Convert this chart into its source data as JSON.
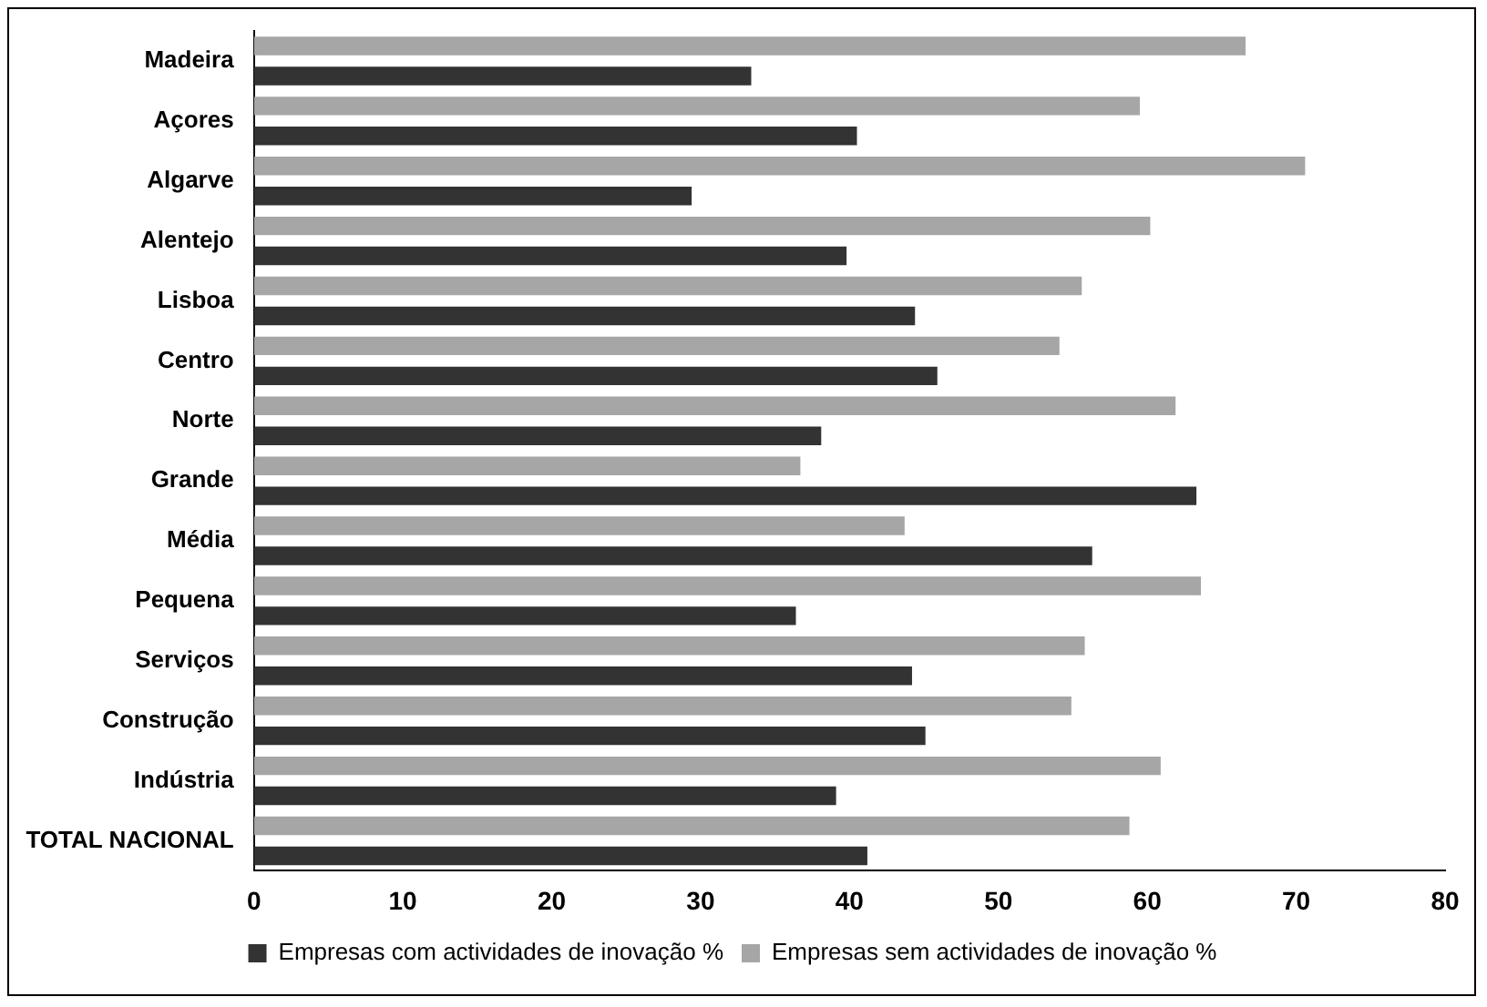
{
  "chart_data": {
    "type": "bar",
    "orientation": "horizontal",
    "categories": [
      "Madeira",
      "Açores",
      "Algarve",
      "Alentejo",
      "Lisboa",
      "Centro",
      "Norte",
      "Grande",
      "Média",
      "Pequena",
      "Serviços",
      "Construção",
      "Indústria",
      "TOTAL NACIONAL"
    ],
    "series": [
      {
        "name": "Empresas com actividades de inovação %",
        "color": "#333333",
        "values": [
          33.4,
          40.5,
          29.4,
          39.8,
          44.4,
          45.9,
          38.1,
          63.3,
          56.3,
          36.4,
          44.2,
          45.1,
          39.1,
          41.2
        ]
      },
      {
        "name": "Empresas sem actividades de inovação %",
        "color": "#a6a6a6",
        "values": [
          66.6,
          59.5,
          70.6,
          60.2,
          55.6,
          54.1,
          61.9,
          36.7,
          43.7,
          63.6,
          55.8,
          54.9,
          60.9,
          58.8
        ]
      }
    ],
    "xlim": [
      0,
      80
    ],
    "xticks": [
      0,
      10,
      20,
      30,
      40,
      50,
      60,
      70,
      80
    ],
    "grid": false,
    "legend": "bottom"
  }
}
